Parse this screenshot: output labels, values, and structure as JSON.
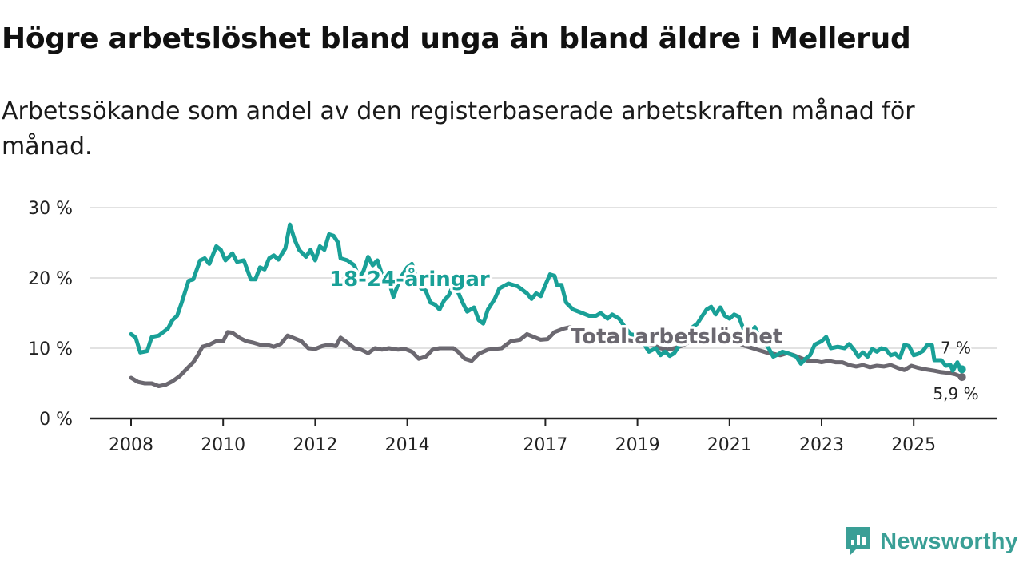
{
  "header": {
    "title": "Högre arbetslöshet bland unga än bland äldre i Mellerud",
    "subtitle": "Arbetssökande som andel av den registerbaserade arbetskraften månad för månad."
  },
  "brand": {
    "name": "Newsworthy",
    "color": "#3a9f96"
  },
  "colors": {
    "youth": "#19a097",
    "total": "#6b6870",
    "grid": "#d9d9d9",
    "axis": "#222222"
  },
  "chart_data": {
    "type": "line",
    "title": "Högre arbetslöshet bland unga än bland äldre i Mellerud",
    "xlabel": "",
    "ylabel": "",
    "xlim": [
      2008.0,
      2026.1
    ],
    "ylim": [
      0,
      30
    ],
    "y_ticks": [
      0,
      10,
      20,
      30
    ],
    "y_tick_labels": [
      "0 %",
      "10 %",
      "20 %",
      "30 %"
    ],
    "x_ticks": [
      2008,
      2010,
      2012,
      2014,
      2017,
      2019,
      2021,
      2023,
      2025
    ],
    "x_tick_labels": [
      "2008",
      "2010",
      "2012",
      "2014",
      "2017",
      "2019",
      "2021",
      "2023",
      "2025"
    ],
    "grid": true,
    "legend": "inline",
    "series": [
      {
        "name": "18-24-åringar",
        "color": "#19a097",
        "end_label": "7 %",
        "points": [
          [
            2008.0,
            12.0
          ],
          [
            2008.1,
            11.5
          ],
          [
            2008.2,
            9.4
          ],
          [
            2008.35,
            9.6
          ],
          [
            2008.45,
            11.6
          ],
          [
            2008.6,
            11.8
          ],
          [
            2008.8,
            12.8
          ],
          [
            2008.9,
            14.0
          ],
          [
            2009.0,
            14.6
          ],
          [
            2009.1,
            16.5
          ],
          [
            2009.25,
            19.6
          ],
          [
            2009.35,
            19.8
          ],
          [
            2009.5,
            22.5
          ],
          [
            2009.6,
            22.8
          ],
          [
            2009.7,
            22.0
          ],
          [
            2009.85,
            24.5
          ],
          [
            2009.95,
            24.0
          ],
          [
            2010.05,
            22.5
          ],
          [
            2010.2,
            23.5
          ],
          [
            2010.3,
            22.3
          ],
          [
            2010.45,
            22.5
          ],
          [
            2010.6,
            19.8
          ],
          [
            2010.7,
            19.8
          ],
          [
            2010.8,
            21.5
          ],
          [
            2010.9,
            21.2
          ],
          [
            2011.0,
            22.8
          ],
          [
            2011.1,
            23.2
          ],
          [
            2011.2,
            22.6
          ],
          [
            2011.35,
            24.2
          ],
          [
            2011.45,
            27.6
          ],
          [
            2011.55,
            25.5
          ],
          [
            2011.65,
            24.0
          ],
          [
            2011.8,
            23.0
          ],
          [
            2011.9,
            24.0
          ],
          [
            2012.0,
            22.5
          ],
          [
            2012.1,
            24.5
          ],
          [
            2012.2,
            24.0
          ],
          [
            2012.3,
            26.2
          ],
          [
            2012.4,
            26.0
          ],
          [
            2012.5,
            25.0
          ],
          [
            2012.55,
            22.8
          ],
          [
            2012.7,
            22.5
          ],
          [
            2012.85,
            21.8
          ],
          [
            2012.95,
            20.0
          ],
          [
            2013.05,
            21.0
          ],
          [
            2013.15,
            23.0
          ],
          [
            2013.25,
            21.8
          ],
          [
            2013.35,
            22.5
          ],
          [
            2013.45,
            20.5
          ],
          [
            2013.6,
            19.5
          ],
          [
            2013.7,
            17.3
          ],
          [
            2013.85,
            20.0
          ],
          [
            2014.0,
            21.5
          ],
          [
            2014.1,
            22.0
          ],
          [
            2014.2,
            20.0
          ],
          [
            2014.3,
            18.5
          ],
          [
            2014.4,
            18.2
          ],
          [
            2014.5,
            16.5
          ],
          [
            2014.6,
            16.2
          ],
          [
            2014.7,
            15.5
          ],
          [
            2014.8,
            16.8
          ],
          [
            2014.9,
            17.5
          ],
          [
            2015.0,
            19.0
          ],
          [
            2015.1,
            18.0
          ],
          [
            2015.2,
            16.5
          ],
          [
            2015.3,
            15.2
          ],
          [
            2015.45,
            15.8
          ],
          [
            2015.55,
            14.0
          ],
          [
            2015.65,
            13.5
          ],
          [
            2015.75,
            15.5
          ],
          [
            2015.9,
            17.0
          ],
          [
            2016.0,
            18.5
          ],
          [
            2016.2,
            19.2
          ],
          [
            2016.4,
            18.8
          ],
          [
            2016.6,
            17.8
          ],
          [
            2016.7,
            17.0
          ],
          [
            2016.8,
            17.8
          ],
          [
            2016.9,
            17.4
          ],
          [
            2017.0,
            19.0
          ],
          [
            2017.1,
            20.5
          ],
          [
            2017.2,
            20.3
          ],
          [
            2017.25,
            19.0
          ],
          [
            2017.35,
            19.0
          ],
          [
            2017.45,
            16.5
          ],
          [
            2017.6,
            15.5
          ],
          [
            2017.8,
            15.0
          ],
          [
            2017.95,
            14.6
          ],
          [
            2018.1,
            14.6
          ],
          [
            2018.2,
            15.0
          ],
          [
            2018.35,
            14.2
          ],
          [
            2018.45,
            14.8
          ],
          [
            2018.6,
            14.2
          ],
          [
            2018.75,
            12.8
          ],
          [
            2018.85,
            12.0
          ],
          [
            2019.0,
            11.8
          ],
          [
            2019.1,
            11.0
          ],
          [
            2019.25,
            9.5
          ],
          [
            2019.4,
            10.0
          ],
          [
            2019.5,
            9.0
          ],
          [
            2019.6,
            9.5
          ],
          [
            2019.7,
            8.9
          ],
          [
            2019.8,
            9.3
          ],
          [
            2019.9,
            10.3
          ],
          [
            2020.0,
            11.0
          ],
          [
            2020.1,
            12.3
          ],
          [
            2020.2,
            13.0
          ],
          [
            2020.3,
            13.5
          ],
          [
            2020.4,
            14.5
          ],
          [
            2020.5,
            15.5
          ],
          [
            2020.6,
            15.9
          ],
          [
            2020.7,
            14.8
          ],
          [
            2020.8,
            15.8
          ],
          [
            2020.9,
            14.6
          ],
          [
            2021.0,
            14.2
          ],
          [
            2021.1,
            14.8
          ],
          [
            2021.2,
            14.5
          ],
          [
            2021.3,
            12.8
          ],
          [
            2021.4,
            11.5
          ],
          [
            2021.5,
            12.5
          ],
          [
            2021.55,
            13.0
          ],
          [
            2021.65,
            11.5
          ],
          [
            2021.75,
            11.0
          ],
          [
            2021.85,
            10.0
          ],
          [
            2021.95,
            8.8
          ],
          [
            2022.05,
            9.1
          ],
          [
            2022.15,
            9.5
          ],
          [
            2022.3,
            9.2
          ],
          [
            2022.45,
            8.8
          ],
          [
            2022.55,
            7.8
          ],
          [
            2022.65,
            8.5
          ],
          [
            2022.75,
            9.0
          ],
          [
            2022.85,
            10.5
          ],
          [
            2023.0,
            11.0
          ],
          [
            2023.1,
            11.6
          ],
          [
            2023.2,
            10.0
          ],
          [
            2023.35,
            10.2
          ],
          [
            2023.5,
            10.0
          ],
          [
            2023.6,
            10.6
          ],
          [
            2023.7,
            9.8
          ],
          [
            2023.8,
            8.8
          ],
          [
            2023.9,
            9.4
          ],
          [
            2024.0,
            8.8
          ],
          [
            2024.1,
            9.9
          ],
          [
            2024.2,
            9.5
          ],
          [
            2024.3,
            10.0
          ],
          [
            2024.4,
            9.8
          ],
          [
            2024.5,
            9.0
          ],
          [
            2024.6,
            9.2
          ],
          [
            2024.7,
            8.6
          ],
          [
            2024.8,
            10.5
          ],
          [
            2024.9,
            10.3
          ],
          [
            2025.0,
            9.0
          ],
          [
            2025.1,
            9.2
          ],
          [
            2025.2,
            9.6
          ],
          [
            2025.3,
            10.5
          ],
          [
            2025.4,
            10.4
          ],
          [
            2025.45,
            8.3
          ],
          [
            2025.6,
            8.3
          ],
          [
            2025.7,
            7.5
          ],
          [
            2025.8,
            7.6
          ],
          [
            2025.85,
            6.8
          ],
          [
            2025.95,
            8.0
          ],
          [
            2026.0,
            7.2
          ],
          [
            2026.05,
            7.0
          ]
        ]
      },
      {
        "name": "Total arbetslöshet",
        "color": "#6b6870",
        "end_label": "5,9 %",
        "points": [
          [
            2008.0,
            5.8
          ],
          [
            2008.15,
            5.2
          ],
          [
            2008.3,
            5.0
          ],
          [
            2008.45,
            5.0
          ],
          [
            2008.6,
            4.6
          ],
          [
            2008.75,
            4.8
          ],
          [
            2008.9,
            5.3
          ],
          [
            2009.05,
            6.0
          ],
          [
            2009.2,
            7.0
          ],
          [
            2009.35,
            8.0
          ],
          [
            2009.45,
            9.0
          ],
          [
            2009.55,
            10.2
          ],
          [
            2009.7,
            10.5
          ],
          [
            2009.85,
            11.0
          ],
          [
            2010.0,
            11.0
          ],
          [
            2010.1,
            12.3
          ],
          [
            2010.2,
            12.2
          ],
          [
            2010.35,
            11.5
          ],
          [
            2010.5,
            11.0
          ],
          [
            2010.65,
            10.8
          ],
          [
            2010.8,
            10.5
          ],
          [
            2010.95,
            10.5
          ],
          [
            2011.1,
            10.2
          ],
          [
            2011.25,
            10.6
          ],
          [
            2011.4,
            11.8
          ],
          [
            2011.55,
            11.4
          ],
          [
            2011.7,
            11.0
          ],
          [
            2011.85,
            10.0
          ],
          [
            2012.0,
            9.9
          ],
          [
            2012.15,
            10.3
          ],
          [
            2012.3,
            10.5
          ],
          [
            2012.45,
            10.3
          ],
          [
            2012.55,
            11.5
          ],
          [
            2012.7,
            10.8
          ],
          [
            2012.85,
            10.0
          ],
          [
            2013.0,
            9.8
          ],
          [
            2013.15,
            9.3
          ],
          [
            2013.3,
            10.0
          ],
          [
            2013.45,
            9.8
          ],
          [
            2013.6,
            10.0
          ],
          [
            2013.8,
            9.8
          ],
          [
            2013.95,
            9.9
          ],
          [
            2014.1,
            9.5
          ],
          [
            2014.25,
            8.5
          ],
          [
            2014.4,
            8.8
          ],
          [
            2014.55,
            9.8
          ],
          [
            2014.7,
            10.0
          ],
          [
            2014.85,
            10.0
          ],
          [
            2015.0,
            10.0
          ],
          [
            2015.1,
            9.5
          ],
          [
            2015.25,
            8.5
          ],
          [
            2015.4,
            8.2
          ],
          [
            2015.55,
            9.2
          ],
          [
            2015.75,
            9.8
          ],
          [
            2015.9,
            9.9
          ],
          [
            2016.05,
            10.0
          ],
          [
            2016.25,
            11.0
          ],
          [
            2016.45,
            11.2
          ],
          [
            2016.6,
            12.0
          ],
          [
            2016.75,
            11.6
          ],
          [
            2016.9,
            11.2
          ],
          [
            2017.05,
            11.3
          ],
          [
            2017.2,
            12.3
          ],
          [
            2017.4,
            12.8
          ],
          [
            2017.55,
            13.0
          ],
          [
            2017.7,
            12.5
          ],
          [
            2017.85,
            12.0
          ],
          [
            2018.0,
            11.8
          ],
          [
            2018.15,
            11.8
          ],
          [
            2018.35,
            11.6
          ],
          [
            2018.55,
            11.4
          ],
          [
            2018.75,
            11.2
          ],
          [
            2018.95,
            11.0
          ],
          [
            2019.15,
            10.8
          ],
          [
            2019.35,
            10.4
          ],
          [
            2019.5,
            10.0
          ],
          [
            2019.65,
            9.8
          ],
          [
            2019.8,
            10.0
          ],
          [
            2019.95,
            10.3
          ],
          [
            2020.1,
            10.8
          ],
          [
            2020.3,
            11.3
          ],
          [
            2020.5,
            11.6
          ],
          [
            2020.7,
            11.5
          ],
          [
            2020.9,
            11.2
          ],
          [
            2021.1,
            10.9
          ],
          [
            2021.3,
            10.4
          ],
          [
            2021.5,
            10.0
          ],
          [
            2021.65,
            9.7
          ],
          [
            2021.8,
            9.4
          ],
          [
            2021.95,
            9.2
          ],
          [
            2022.1,
            9.0
          ],
          [
            2022.25,
            9.3
          ],
          [
            2022.4,
            9.0
          ],
          [
            2022.55,
            8.6
          ],
          [
            2022.7,
            8.2
          ],
          [
            2022.85,
            8.2
          ],
          [
            2023.0,
            8.0
          ],
          [
            2023.15,
            8.2
          ],
          [
            2023.3,
            8.0
          ],
          [
            2023.45,
            8.0
          ],
          [
            2023.6,
            7.6
          ],
          [
            2023.75,
            7.4
          ],
          [
            2023.9,
            7.6
          ],
          [
            2024.05,
            7.3
          ],
          [
            2024.2,
            7.5
          ],
          [
            2024.35,
            7.4
          ],
          [
            2024.5,
            7.6
          ],
          [
            2024.65,
            7.2
          ],
          [
            2024.8,
            6.9
          ],
          [
            2024.95,
            7.5
          ],
          [
            2025.1,
            7.2
          ],
          [
            2025.25,
            7.0
          ],
          [
            2025.45,
            6.8
          ],
          [
            2025.6,
            6.6
          ],
          [
            2025.75,
            6.5
          ],
          [
            2025.9,
            6.3
          ],
          [
            2026.05,
            5.9
          ]
        ]
      }
    ]
  }
}
